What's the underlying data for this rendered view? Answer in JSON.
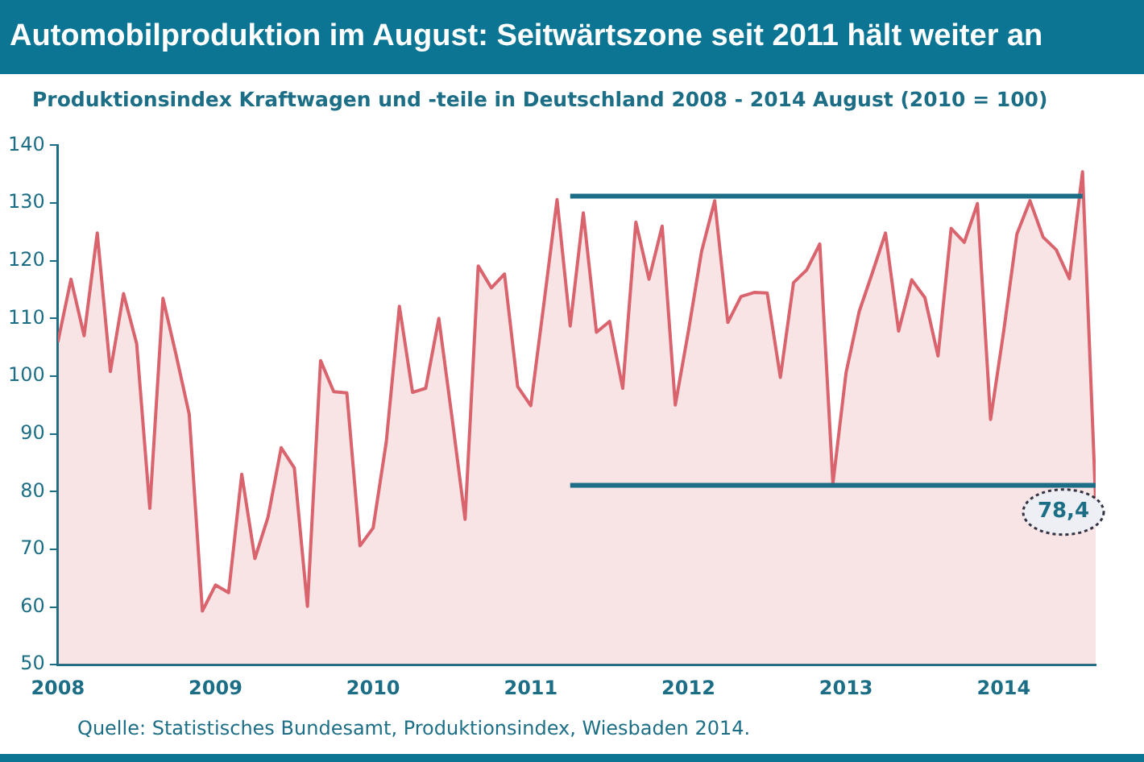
{
  "chart_data": {
    "type": "area",
    "title": "Automobilproduktion im August:  Seitwärtszone seit 2011 hält weiter an",
    "subtitle": "Produktionsindex Kraftwagen und -teile in Deutschland 2008 - 2014 August (2010 = 100)",
    "x": [
      "2008-01",
      "2008-02",
      "2008-03",
      "2008-04",
      "2008-05",
      "2008-06",
      "2008-07",
      "2008-08",
      "2008-09",
      "2008-10",
      "2008-11",
      "2008-12",
      "2009-01",
      "2009-02",
      "2009-03",
      "2009-04",
      "2009-05",
      "2009-06",
      "2009-07",
      "2009-08",
      "2009-09",
      "2009-10",
      "2009-11",
      "2009-12",
      "2010-01",
      "2010-02",
      "2010-03",
      "2010-04",
      "2010-05",
      "2010-06",
      "2010-07",
      "2010-08",
      "2010-09",
      "2010-10",
      "2010-11",
      "2010-12",
      "2011-01",
      "2011-02",
      "2011-03",
      "2011-04",
      "2011-05",
      "2011-06",
      "2011-07",
      "2011-08",
      "2011-09",
      "2011-10",
      "2011-11",
      "2011-12",
      "2012-01",
      "2012-02",
      "2012-03",
      "2012-04",
      "2012-05",
      "2012-06",
      "2012-07",
      "2012-08",
      "2012-09",
      "2012-10",
      "2012-11",
      "2012-12",
      "2013-01",
      "2013-02",
      "2013-03",
      "2013-04",
      "2013-05",
      "2013-06",
      "2013-07",
      "2013-08",
      "2013-09",
      "2013-10",
      "2013-11",
      "2013-12",
      "2014-01",
      "2014-02",
      "2014-03",
      "2014-04",
      "2014-05",
      "2014-06",
      "2014-07",
      "2014-08"
    ],
    "series": [
      {
        "color": "#d9646e",
        "values": [
          105.9,
          116.8,
          107.0,
          124.8,
          100.8,
          114.3,
          105.6,
          77.1,
          113.5,
          103.7,
          93.4,
          59.3,
          63.8,
          62.5,
          83.0,
          68.4,
          75.6,
          87.6,
          84.1,
          60.1,
          102.7,
          97.3,
          97.1,
          70.6,
          73.7,
          88.6,
          112.1,
          97.2,
          97.9,
          110.0,
          92.9,
          75.2,
          119.1,
          115.3,
          117.7,
          98.2,
          94.9,
          112.6,
          130.6,
          108.7,
          128.3,
          107.6,
          109.5,
          97.9,
          126.7,
          116.8,
          126.0,
          95.0,
          107.8,
          121.6,
          130.4,
          109.3,
          113.8,
          114.5,
          114.4,
          99.8,
          116.2,
          118.4,
          122.9,
          81.4,
          100.6,
          111.2,
          117.9,
          124.8,
          107.8,
          116.7,
          113.6,
          103.5,
          125.6,
          123.2,
          129.9,
          92.5,
          107.8,
          124.6,
          130.4,
          124.1,
          121.9,
          116.9,
          135.4,
          78.4
        ]
      },
      {
        "type": "line",
        "color": "#1b6e85",
        "x": [
          "2011-04",
          "2014-07"
        ],
        "values": [
          131.2,
          131.2
        ]
      },
      {
        "type": "line",
        "color": "#1b6e85",
        "x": [
          "2011-04",
          "2014-08"
        ],
        "values": [
          81.1,
          81.1
        ]
      }
    ],
    "xlim": [
      "2008-01",
      "2014-08"
    ],
    "xticks": [
      "2008",
      "2009",
      "2010",
      "2011",
      "2012",
      "2013",
      "2014"
    ],
    "ylim": [
      50,
      140
    ],
    "yticks": [
      50,
      60,
      70,
      80,
      90,
      100,
      110,
      120,
      130,
      140
    ],
    "grid": false,
    "marker": "none",
    "annotations": [
      {
        "text": "78,4",
        "x": "2014-08",
        "y": 78.4
      },
      "Quelle: Statistisches Bundesamt, Produktionsindex, Wiesbaden 2014."
    ]
  }
}
